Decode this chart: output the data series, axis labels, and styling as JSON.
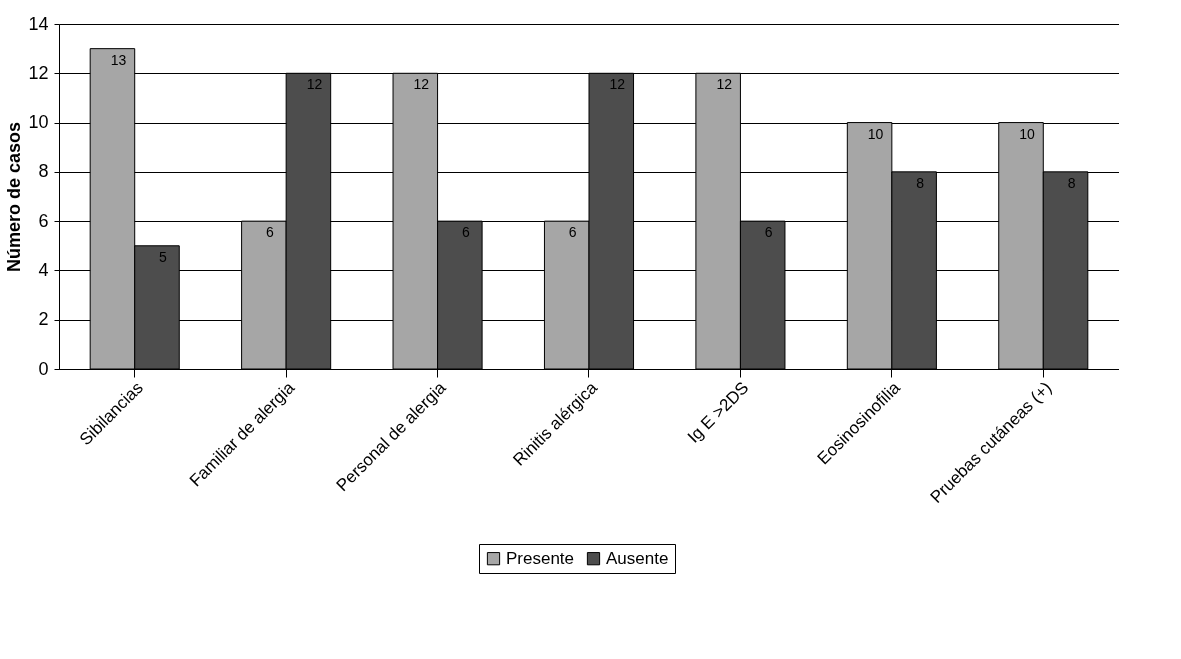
{
  "chart_data": {
    "type": "bar",
    "ylabel": "Número de casos",
    "categories": [
      "Sibilancias",
      "Familiar  de alergia",
      "Personal de alergia",
      "Rinitis alérgica",
      "Ig E >2DS",
      "Eosinosinofilia",
      "Pruebas cutáneas (+)"
    ],
    "series": [
      {
        "name": "Presente",
        "color": "#a6a6a6",
        "values": [
          13,
          6,
          12,
          6,
          12,
          10,
          10
        ]
      },
      {
        "name": "Ausente",
        "color": "#4d4d4d",
        "values": [
          5,
          12,
          6,
          12,
          6,
          8,
          8
        ]
      }
    ],
    "ylim": [
      0,
      14
    ],
    "yticks": [
      0,
      2,
      4,
      6,
      8,
      10,
      12,
      14
    ],
    "grid": "y",
    "legend": "bottom",
    "data_labels": true
  }
}
